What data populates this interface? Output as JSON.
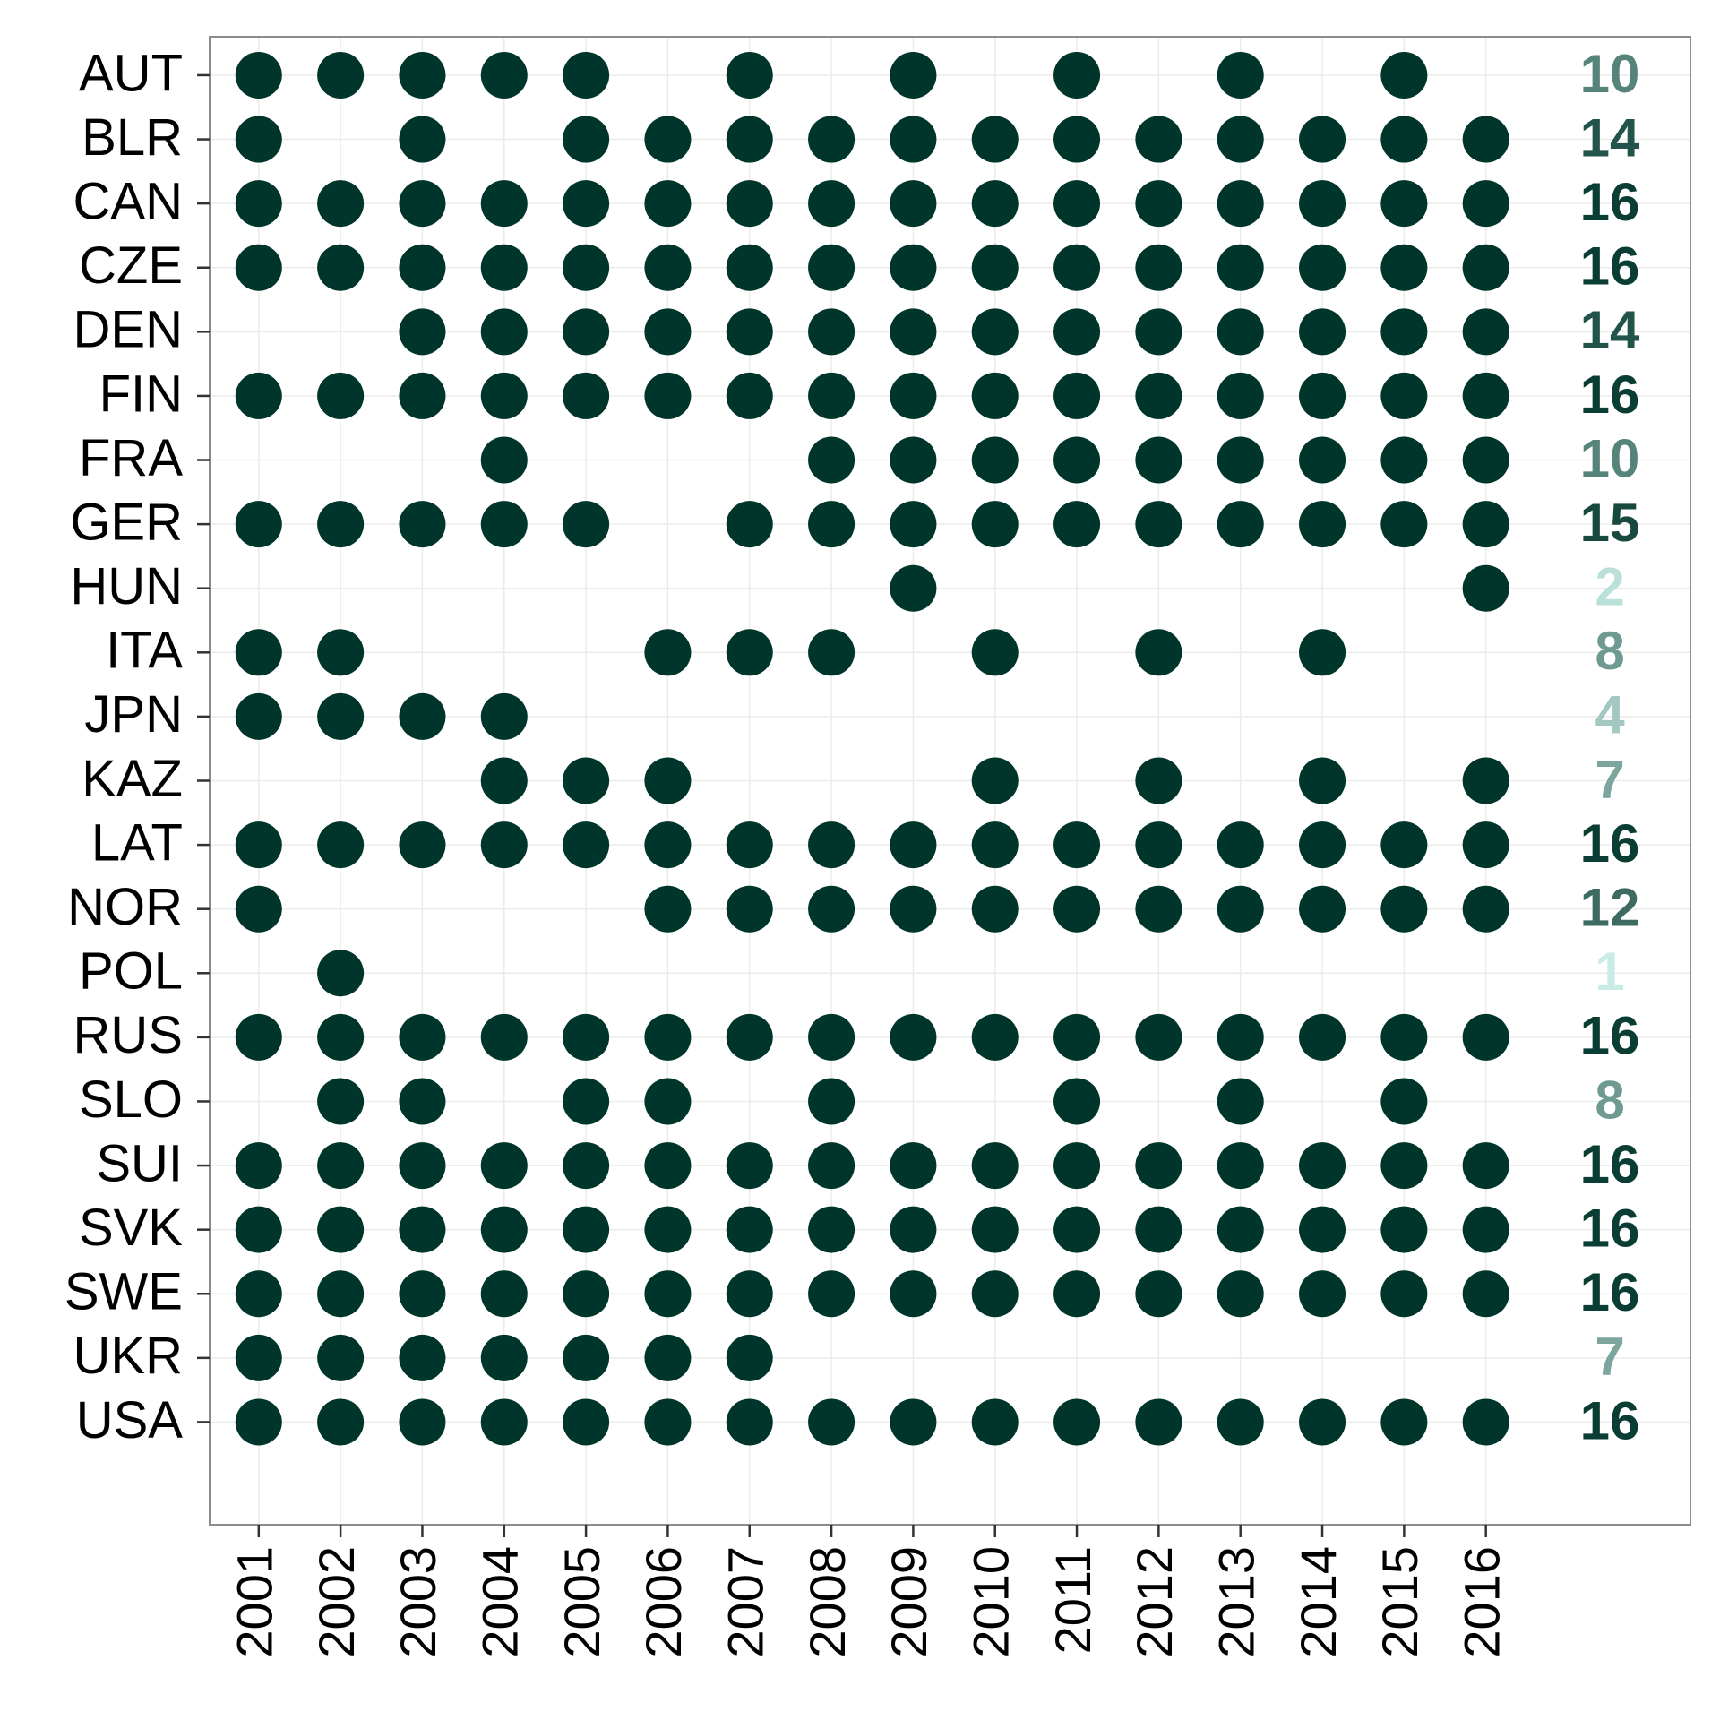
{
  "chart_data": {
    "type": "dot-matrix",
    "categories": [
      "AUT",
      "BLR",
      "CAN",
      "CZE",
      "DEN",
      "FIN",
      "FRA",
      "GER",
      "HUN",
      "ITA",
      "JPN",
      "KAZ",
      "LAT",
      "NOR",
      "POL",
      "RUS",
      "SLO",
      "SUI",
      "SVK",
      "SWE",
      "UKR",
      "USA"
    ],
    "x": [
      2001,
      2002,
      2003,
      2004,
      2005,
      2006,
      2007,
      2008,
      2009,
      2010,
      2011,
      2012,
      2013,
      2014,
      2015,
      2016
    ],
    "values": [
      [
        1,
        1,
        1,
        1,
        1,
        0,
        1,
        0,
        1,
        0,
        1,
        0,
        1,
        0,
        1,
        0
      ],
      [
        1,
        0,
        1,
        0,
        1,
        1,
        1,
        1,
        1,
        1,
        1,
        1,
        1,
        1,
        1,
        1
      ],
      [
        1,
        1,
        1,
        1,
        1,
        1,
        1,
        1,
        1,
        1,
        1,
        1,
        1,
        1,
        1,
        1
      ],
      [
        1,
        1,
        1,
        1,
        1,
        1,
        1,
        1,
        1,
        1,
        1,
        1,
        1,
        1,
        1,
        1
      ],
      [
        0,
        0,
        1,
        1,
        1,
        1,
        1,
        1,
        1,
        1,
        1,
        1,
        1,
        1,
        1,
        1
      ],
      [
        1,
        1,
        1,
        1,
        1,
        1,
        1,
        1,
        1,
        1,
        1,
        1,
        1,
        1,
        1,
        1
      ],
      [
        0,
        0,
        0,
        1,
        0,
        0,
        0,
        1,
        1,
        1,
        1,
        1,
        1,
        1,
        1,
        1
      ],
      [
        1,
        1,
        1,
        1,
        1,
        0,
        1,
        1,
        1,
        1,
        1,
        1,
        1,
        1,
        1,
        1
      ],
      [
        0,
        0,
        0,
        0,
        0,
        0,
        0,
        0,
        1,
        0,
        0,
        0,
        0,
        0,
        0,
        1
      ],
      [
        1,
        1,
        0,
        0,
        0,
        1,
        1,
        1,
        0,
        1,
        0,
        1,
        0,
        1,
        0,
        0
      ],
      [
        1,
        1,
        1,
        1,
        0,
        0,
        0,
        0,
        0,
        0,
        0,
        0,
        0,
        0,
        0,
        0
      ],
      [
        0,
        0,
        0,
        1,
        1,
        1,
        0,
        0,
        0,
        1,
        0,
        1,
        0,
        1,
        0,
        1
      ],
      [
        1,
        1,
        1,
        1,
        1,
        1,
        1,
        1,
        1,
        1,
        1,
        1,
        1,
        1,
        1,
        1
      ],
      [
        1,
        0,
        0,
        0,
        0,
        1,
        1,
        1,
        1,
        1,
        1,
        1,
        1,
        1,
        1,
        1
      ],
      [
        0,
        1,
        0,
        0,
        0,
        0,
        0,
        0,
        0,
        0,
        0,
        0,
        0,
        0,
        0,
        0
      ],
      [
        1,
        1,
        1,
        1,
        1,
        1,
        1,
        1,
        1,
        1,
        1,
        1,
        1,
        1,
        1,
        1
      ],
      [
        0,
        1,
        1,
        0,
        1,
        1,
        0,
        1,
        0,
        0,
        1,
        0,
        1,
        0,
        1,
        0
      ],
      [
        1,
        1,
        1,
        1,
        1,
        1,
        1,
        1,
        1,
        1,
        1,
        1,
        1,
        1,
        1,
        1
      ],
      [
        1,
        1,
        1,
        1,
        1,
        1,
        1,
        1,
        1,
        1,
        1,
        1,
        1,
        1,
        1,
        1
      ],
      [
        1,
        1,
        1,
        1,
        1,
        1,
        1,
        1,
        1,
        1,
        1,
        1,
        1,
        1,
        1,
        1
      ],
      [
        1,
        1,
        1,
        1,
        1,
        1,
        1,
        0,
        0,
        0,
        0,
        0,
        0,
        0,
        0,
        0
      ],
      [
        1,
        1,
        1,
        1,
        1,
        1,
        1,
        1,
        1,
        1,
        1,
        1,
        1,
        1,
        1,
        1
      ]
    ],
    "totals": [
      10,
      14,
      16,
      16,
      14,
      16,
      10,
      15,
      2,
      8,
      4,
      7,
      16,
      12,
      1,
      16,
      8,
      16,
      16,
      16,
      7,
      16
    ],
    "color": "#00352b",
    "total_colors": [
      "#c8ebe5",
      "#0a3d33"
    ],
    "xlim": [
      2000.4,
      2018.5
    ],
    "xticks": [
      2001,
      2002,
      2003,
      2004,
      2005,
      2006,
      2007,
      2008,
      2009,
      2010,
      2011,
      2012,
      2013,
      2014,
      2015,
      2016
    ],
    "grid": true
  }
}
